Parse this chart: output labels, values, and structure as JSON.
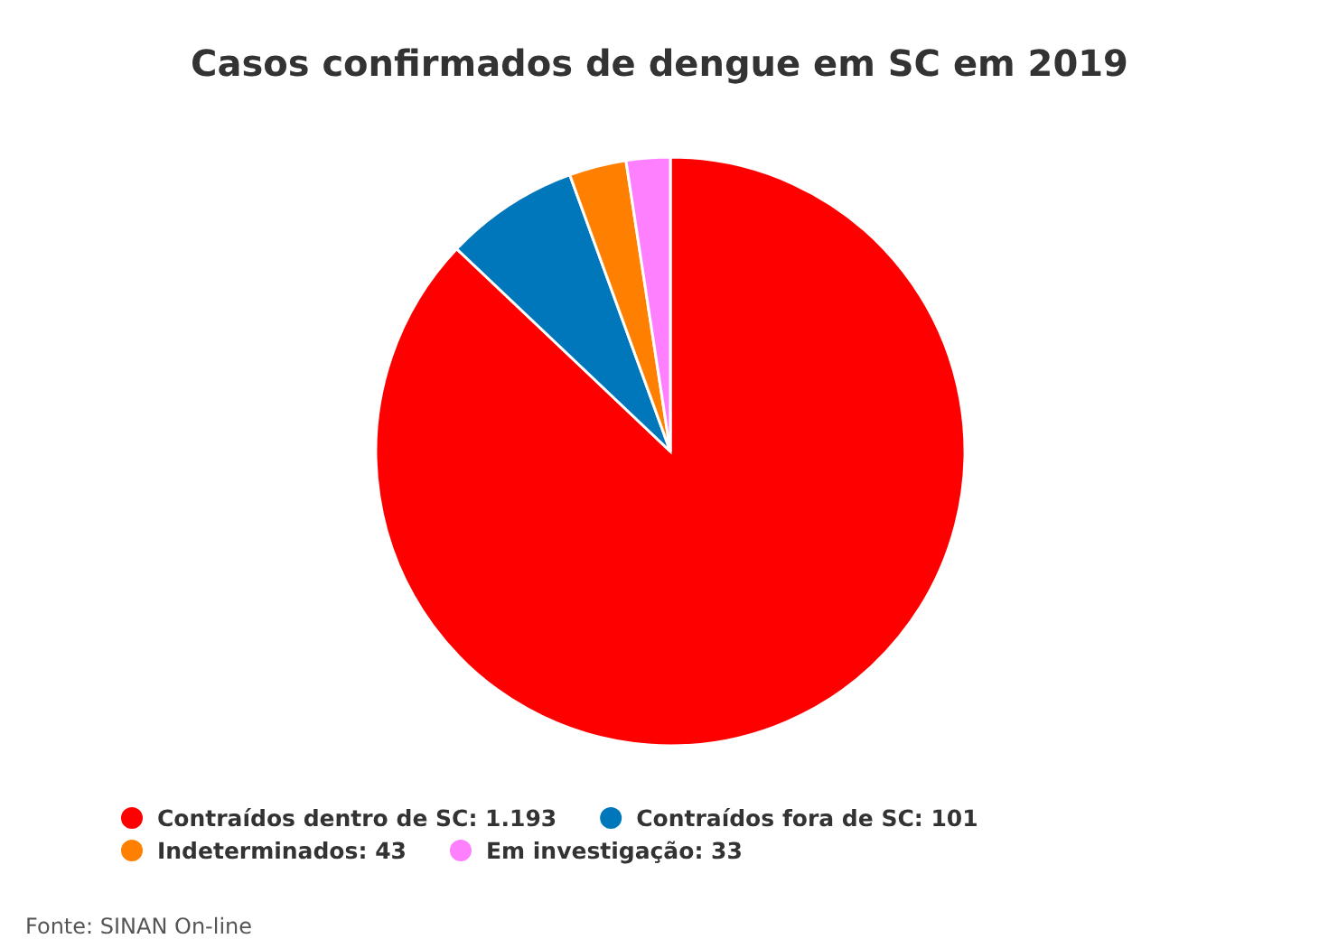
{
  "chart_data": {
    "type": "pie",
    "title": "Casos confirmados de dengue em SC em 2019",
    "categories": [
      "Contraídos dentro de SC",
      "Contraídos fora de SC",
      "Indeterminados",
      "Em investigação"
    ],
    "values": [
      1193,
      101,
      43,
      33
    ],
    "value_labels": [
      "1.193",
      "101",
      "43",
      "33"
    ],
    "colors": [
      "#ff0000",
      "#0077bb",
      "#ff8000",
      "#ff80ff"
    ],
    "legend": "bottom",
    "annotations": [
      "Fonte: SINAN On-line"
    ]
  }
}
